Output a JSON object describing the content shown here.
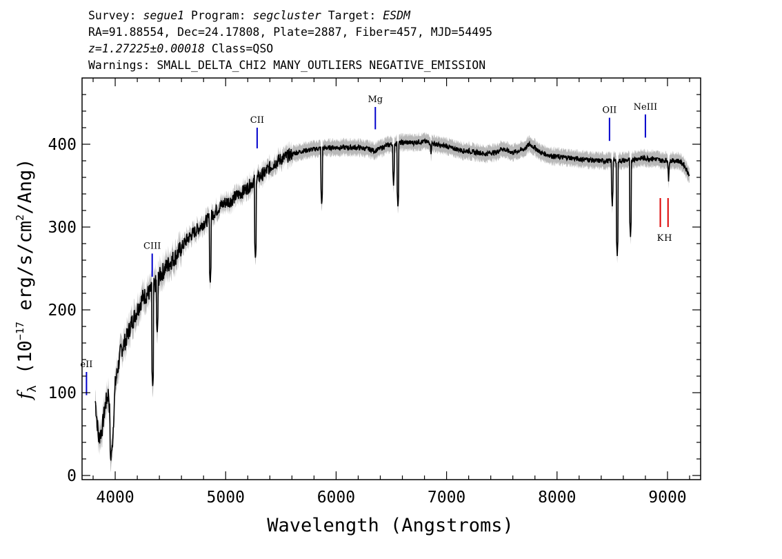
{
  "header": {
    "survey_label": "Survey:",
    "survey": "segue1",
    "program_label": "Program:",
    "program": "segcluster",
    "target_label": "Target:",
    "target": "ESDM",
    "line2": "RA=91.88554, Dec=24.17808, Plate=2887, Fiber=457, MJD=54495",
    "redshift": "z=1.27225±0.00018",
    "class": "Class=QSO",
    "warnings": "Warnings: SMALL_DELTA_CHI2 MANY_OUTLIERS NEGATIVE_EMISSION"
  },
  "chart_data": {
    "type": "line",
    "xlabel": "Wavelength (Angstroms)",
    "ylabel": "f_λ (10^-17 erg/s/cm^2/Ang)",
    "ylabel_parts": {
      "f": "f",
      "lambda": "λ",
      "unit_a": "(10",
      "exp": "−17",
      "unit_b": " erg/s/cm",
      "exp2": "2",
      "unit_c": "/Ang)"
    },
    "xlim": [
      3700,
      9300
    ],
    "ylim": [
      -5,
      480
    ],
    "xticks": [
      4000,
      5000,
      6000,
      7000,
      8000,
      9000
    ],
    "yticks": [
      0,
      100,
      200,
      300,
      400
    ],
    "series": [
      {
        "color": "#000000",
        "error_band_color": "#b8b8b8",
        "x": [
          3820,
          3850,
          3880,
          3910,
          3940,
          3970,
          4000,
          4050,
          4100,
          4150,
          4200,
          4250,
          4300,
          4340,
          4360,
          4400,
          4450,
          4500,
          4550,
          4600,
          4650,
          4700,
          4750,
          4800,
          4850,
          4900,
          4950,
          5000,
          5050,
          5100,
          5150,
          5200,
          5250,
          5300,
          5350,
          5400,
          5450,
          5500,
          5550,
          5600,
          5650,
          5700,
          5750,
          5800,
          5850,
          5900,
          5950,
          6000,
          6050,
          6100,
          6150,
          6200,
          6250,
          6300,
          6350,
          6400,
          6450,
          6500,
          6550,
          6600,
          6650,
          6700,
          6750,
          6800,
          6850,
          6900,
          6950,
          7000,
          7050,
          7100,
          7150,
          7200,
          7250,
          7300,
          7350,
          7400,
          7450,
          7500,
          7550,
          7600,
          7650,
          7700,
          7750,
          7800,
          7850,
          7900,
          7950,
          8000,
          8050,
          8100,
          8150,
          8200,
          8250,
          8300,
          8350,
          8400,
          8450,
          8500,
          8550,
          8600,
          8650,
          8700,
          8750,
          8800,
          8850,
          8900,
          8950,
          9000,
          9050,
          9100,
          9150,
          9200
        ],
        "y": [
          90,
          45,
          55,
          85,
          100,
          25,
          110,
          150,
          165,
          185,
          200,
          215,
          220,
          225,
          230,
          240,
          250,
          258,
          265,
          275,
          285,
          292,
          298,
          305,
          310,
          318,
          325,
          330,
          332,
          338,
          342,
          348,
          355,
          360,
          365,
          372,
          378,
          382,
          385,
          388,
          390,
          392,
          393,
          394,
          395,
          395,
          396,
          396,
          396,
          396,
          396,
          396,
          395,
          394,
          392,
          395,
          398,
          400,
          401,
          402,
          402,
          402,
          403,
          403,
          402,
          400,
          398,
          398,
          395,
          394,
          392,
          392,
          390,
          390,
          388,
          390,
          390,
          395,
          392,
          390,
          392,
          394,
          400,
          396,
          390,
          388,
          386,
          385,
          384,
          384,
          383,
          382,
          382,
          381,
          380,
          380,
          380,
          380,
          380,
          380,
          381,
          382,
          383,
          383,
          383,
          382,
          380,
          381,
          380,
          380,
          375,
          362
        ],
        "absorption": [
          [
            3960,
            15
          ],
          [
            4340,
            105
          ],
          [
            4380,
            170
          ],
          [
            4860,
            230
          ],
          [
            5270,
            260
          ],
          [
            5870,
            325
          ],
          [
            6560,
            322
          ],
          [
            6520,
            350
          ],
          [
            6860,
            385
          ],
          [
            8500,
            325
          ],
          [
            8545,
            265
          ],
          [
            8665,
            288
          ],
          [
            9010,
            355
          ]
        ]
      }
    ],
    "line_markers": [
      {
        "label": "eII",
        "wavelength": 3740,
        "y0": 97,
        "y1": 125,
        "color": "#0000cc"
      },
      {
        "label": "CIII",
        "wavelength": 4335,
        "y0": 240,
        "y1": 268,
        "color": "#0000cc"
      },
      {
        "label": "CII",
        "wavelength": 5285,
        "y0": 395,
        "y1": 420,
        "color": "#0000cc"
      },
      {
        "label": "Mg",
        "wavelength": 6355,
        "y0": 418,
        "y1": 445,
        "color": "#0000cc"
      },
      {
        "label": "OII",
        "wavelength": 8475,
        "y0": 404,
        "y1": 432,
        "color": "#0000cc"
      },
      {
        "label": "NeIII",
        "wavelength": 8800,
        "y0": 408,
        "y1": 436,
        "color": "#0000cc"
      },
      {
        "label": "K",
        "wavelength": 8935,
        "y0": 300,
        "y1": 335,
        "color": "#dd0000"
      },
      {
        "label": "H",
        "wavelength": 9005,
        "y0": 300,
        "y1": 335,
        "color": "#dd0000"
      }
    ]
  }
}
